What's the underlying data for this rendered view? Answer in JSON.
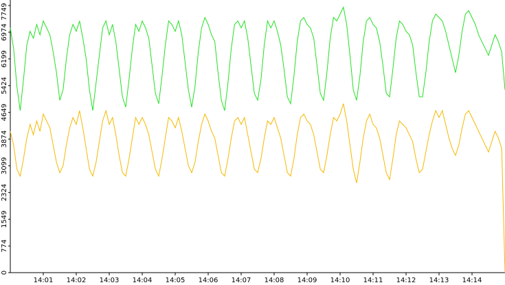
{
  "chart_data": {
    "type": "line",
    "x": [
      0,
      0.1,
      0.2,
      0.3,
      0.4,
      0.5,
      0.6,
      0.7,
      0.8,
      0.9,
      1,
      1.1,
      1.2,
      1.3,
      1.4,
      1.5,
      1.6,
      1.7,
      1.8,
      1.9,
      2,
      2.1,
      2.2,
      2.3,
      2.4,
      2.5,
      2.6,
      2.7,
      2.8,
      2.9,
      3,
      3.1,
      3.2,
      3.3,
      3.4,
      3.5,
      3.6,
      3.7,
      3.8,
      3.9,
      4,
      4.1,
      4.2,
      4.3,
      4.4,
      4.5,
      4.6,
      4.7,
      4.8,
      4.9,
      5,
      5.1,
      5.2,
      5.3,
      5.4,
      5.5,
      5.6,
      5.7,
      5.8,
      5.9,
      6,
      6.1,
      6.2,
      6.3,
      6.4,
      6.5,
      6.6,
      6.7,
      6.8,
      6.9,
      7,
      7.1,
      7.2,
      7.3,
      7.4,
      7.5,
      7.6,
      7.7,
      7.8,
      7.9,
      8,
      8.1,
      8.2,
      8.3,
      8.4,
      8.5,
      8.6,
      8.7,
      8.8,
      8.9,
      9,
      9.1,
      9.2,
      9.3,
      9.4,
      9.5,
      9.6,
      9.7,
      9.8,
      9.9,
      10,
      10.1,
      10.2,
      10.3,
      10.4,
      10.5,
      10.6,
      10.7,
      10.8,
      10.9,
      11,
      11.1,
      11.2,
      11.3,
      11.4,
      11.5,
      11.6,
      11.7,
      11.8,
      11.9,
      12,
      12.1,
      12.2,
      12.3,
      12.4,
      12.5,
      12.6,
      12.7,
      12.8,
      12.9,
      13,
      13.1,
      13.2,
      13.3,
      13.4,
      13.5,
      13.6,
      13.7,
      13.8,
      13.9,
      14,
      14.1,
      14.2,
      14.3,
      14.4,
      14.5,
      14.6,
      14.7,
      14.8,
      14.9,
      15
    ],
    "series": [
      {
        "color": "#22e022",
        "values": [
          7100,
          6500,
          5400,
          4700,
          5600,
          6600,
          7000,
          6800,
          7200,
          6900,
          7300,
          7100,
          6900,
          6400,
          5800,
          5000,
          5300,
          6200,
          6900,
          7200,
          7000,
          7300,
          6800,
          6200,
          5300,
          4700,
          5500,
          6300,
          7100,
          7300,
          6900,
          7200,
          6700,
          5900,
          5100,
          4800,
          5600,
          6500,
          7200,
          7000,
          7300,
          7100,
          6800,
          6000,
          5200,
          4900,
          5700,
          6600,
          7300,
          7200,
          7000,
          7300,
          6900,
          6100,
          5300,
          4800,
          5400,
          6400,
          7100,
          7400,
          7200,
          6900,
          6700,
          5800,
          5000,
          4700,
          5500,
          6500,
          7200,
          7300,
          7100,
          7300,
          6800,
          6000,
          5200,
          5000,
          5600,
          6600,
          7300,
          7100,
          7300,
          7000,
          6600,
          5900,
          5100,
          4900,
          5700,
          6700,
          7300,
          7400,
          7200,
          7100,
          6800,
          6000,
          5200,
          5000,
          5800,
          6800,
          7400,
          7300,
          7500,
          7700,
          7200,
          6300,
          5300,
          5000,
          5700,
          6700,
          7300,
          7400,
          7200,
          7100,
          6700,
          6000,
          5200,
          5100,
          5900,
          6800,
          7300,
          7200,
          7000,
          6900,
          6600,
          5800,
          5100,
          5100,
          5800,
          6700,
          7300,
          7500,
          7400,
          7300,
          7000,
          6600,
          6200,
          5800,
          6300,
          7000,
          7500,
          7600,
          7400,
          7200,
          6900,
          6700,
          6500,
          6300,
          6600,
          6900,
          6700,
          6400,
          5300
        ]
      },
      {
        "color": "#f5b800",
        "values": [
          4100,
          3700,
          3000,
          2800,
          3300,
          3900,
          4300,
          4000,
          4400,
          4100,
          4600,
          4400,
          4200,
          3700,
          3200,
          2900,
          3100,
          3700,
          4200,
          4500,
          4300,
          4700,
          4200,
          3600,
          3000,
          2800,
          3200,
          3800,
          4400,
          4700,
          4300,
          4500,
          4000,
          3400,
          2900,
          2800,
          3300,
          3900,
          4500,
          4300,
          4500,
          4300,
          4000,
          3500,
          3000,
          2800,
          3300,
          3900,
          4500,
          4400,
          4200,
          4500,
          4100,
          3600,
          3100,
          2900,
          3200,
          3800,
          4300,
          4600,
          4400,
          4100,
          3900,
          3400,
          2900,
          2800,
          3300,
          3900,
          4400,
          4500,
          4300,
          4500,
          4000,
          3500,
          3000,
          2900,
          3300,
          3900,
          4400,
          4300,
          4500,
          4200,
          3900,
          3400,
          2900,
          2800,
          3300,
          4000,
          4500,
          4600,
          4400,
          4300,
          4000,
          3500,
          3000,
          2900,
          3400,
          4000,
          4500,
          4400,
          4600,
          4900,
          4400,
          3700,
          3000,
          2600,
          3200,
          3900,
          4400,
          4600,
          4300,
          4200,
          3900,
          3400,
          2900,
          2700,
          3300,
          4000,
          4400,
          4300,
          4200,
          4000,
          3800,
          3300,
          2900,
          3000,
          3500,
          4000,
          4400,
          4700,
          4500,
          4700,
          4300,
          3900,
          3600,
          3400,
          3700,
          4200,
          4600,
          4700,
          4500,
          4300,
          4100,
          3900,
          3700,
          3500,
          3800,
          4100,
          3900,
          3600,
          0
        ]
      }
    ],
    "xlim": [
      0,
      15
    ],
    "xticks": [
      {
        "value": 1,
        "label": "14:01"
      },
      {
        "value": 2,
        "label": "14:02"
      },
      {
        "value": 3,
        "label": "14:03"
      },
      {
        "value": 4,
        "label": "14:04"
      },
      {
        "value": 5,
        "label": "14:05"
      },
      {
        "value": 6,
        "label": "14:06"
      },
      {
        "value": 7,
        "label": "14:07"
      },
      {
        "value": 8,
        "label": "14:08"
      },
      {
        "value": 9,
        "label": "14:09"
      },
      {
        "value": 10,
        "label": "14:10"
      },
      {
        "value": 11,
        "label": "14:11"
      },
      {
        "value": 12,
        "label": "14:12"
      },
      {
        "value": 13,
        "label": "14:13"
      },
      {
        "value": 14,
        "label": "14:14"
      }
    ],
    "ylim": [
      0,
      7749
    ],
    "yticks": [
      0,
      774,
      1549,
      2324,
      3099,
      3874,
      4649,
      5424,
      6199,
      6974,
      7749
    ]
  }
}
